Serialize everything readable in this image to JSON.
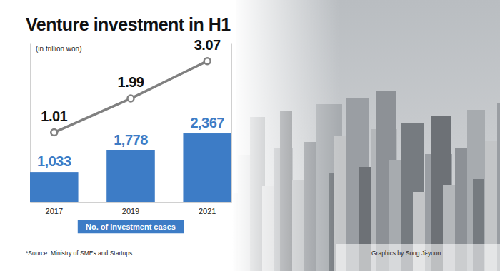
{
  "chart_data": {
    "type": "bar",
    "title": "Venture investment in H1",
    "subtitle": "(in trillion won)",
    "categories": [
      "2017",
      "2019",
      "2021"
    ],
    "series": [
      {
        "name": "No. of investment cases",
        "type": "bar",
        "color": "#3d7cc6",
        "values": [
          1033,
          1778,
          2367
        ],
        "value_labels": [
          "1,033",
          "1,778",
          "2,367"
        ]
      },
      {
        "type": "line",
        "axis": "y2",
        "color": "#808080",
        "marker": "circle",
        "values": [
          1.01,
          1.99,
          3.07
        ]
      }
    ],
    "ylim": [
      0,
      5500
    ],
    "y2lim": [
      -1,
      3.6
    ],
    "tick_labels": "x",
    "data_labels": true,
    "legend": "bottom",
    "annotations": [
      "*Source: Ministry of SMEs and Startups",
      "Graphics by Song Ji-yoon"
    ]
  }
}
